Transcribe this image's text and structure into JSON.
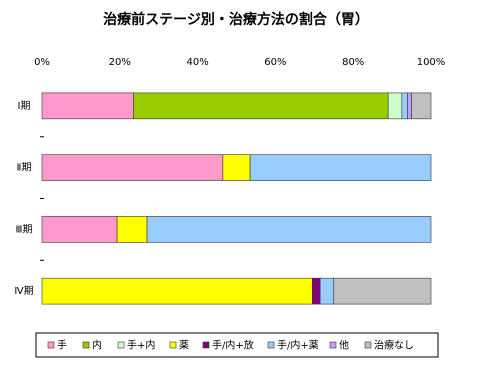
{
  "chart_data": {
    "type": "stacked_barh",
    "title": "治療前ステージ別・治療方法の割合（胃）",
    "categories": [
      "Ⅰ期",
      "Ⅱ期",
      "Ⅲ期",
      "Ⅳ期"
    ],
    "series": [
      {
        "name": "手",
        "color": "#ff99cc",
        "values": [
          23.5,
          46.5,
          19.3,
          0
        ]
      },
      {
        "name": "内",
        "color": "#99cc00",
        "values": [
          65.5,
          0,
          0,
          0
        ]
      },
      {
        "name": "手+内",
        "color": "#ccffcc",
        "values": [
          3.5,
          0,
          0,
          0
        ]
      },
      {
        "name": "薬",
        "color": "#ffff00",
        "values": [
          0,
          7,
          7.7,
          69.5
        ]
      },
      {
        "name": "手/内+放",
        "color": "#800080",
        "values": [
          0,
          0,
          0,
          2
        ]
      },
      {
        "name": "手/内+薬",
        "color": "#99ccff",
        "values": [
          1.5,
          46.5,
          73,
          3.5
        ]
      },
      {
        "name": "他",
        "color": "#cc99ff",
        "values": [
          1,
          0,
          0,
          0
        ]
      },
      {
        "name": "治療なし",
        "color": "#c0c0c0",
        "values": [
          5,
          0,
          0,
          25
        ]
      }
    ],
    "xlim": [
      0,
      100
    ],
    "xticks": [
      {
        "value": 0,
        "label": "0%"
      },
      {
        "value": 20,
        "label": "20%"
      },
      {
        "value": 40,
        "label": "40%"
      },
      {
        "value": 60,
        "label": "60%"
      },
      {
        "value": 80,
        "label": "80%"
      },
      {
        "value": 100,
        "label": "100%"
      }
    ],
    "legend": "bottom"
  }
}
